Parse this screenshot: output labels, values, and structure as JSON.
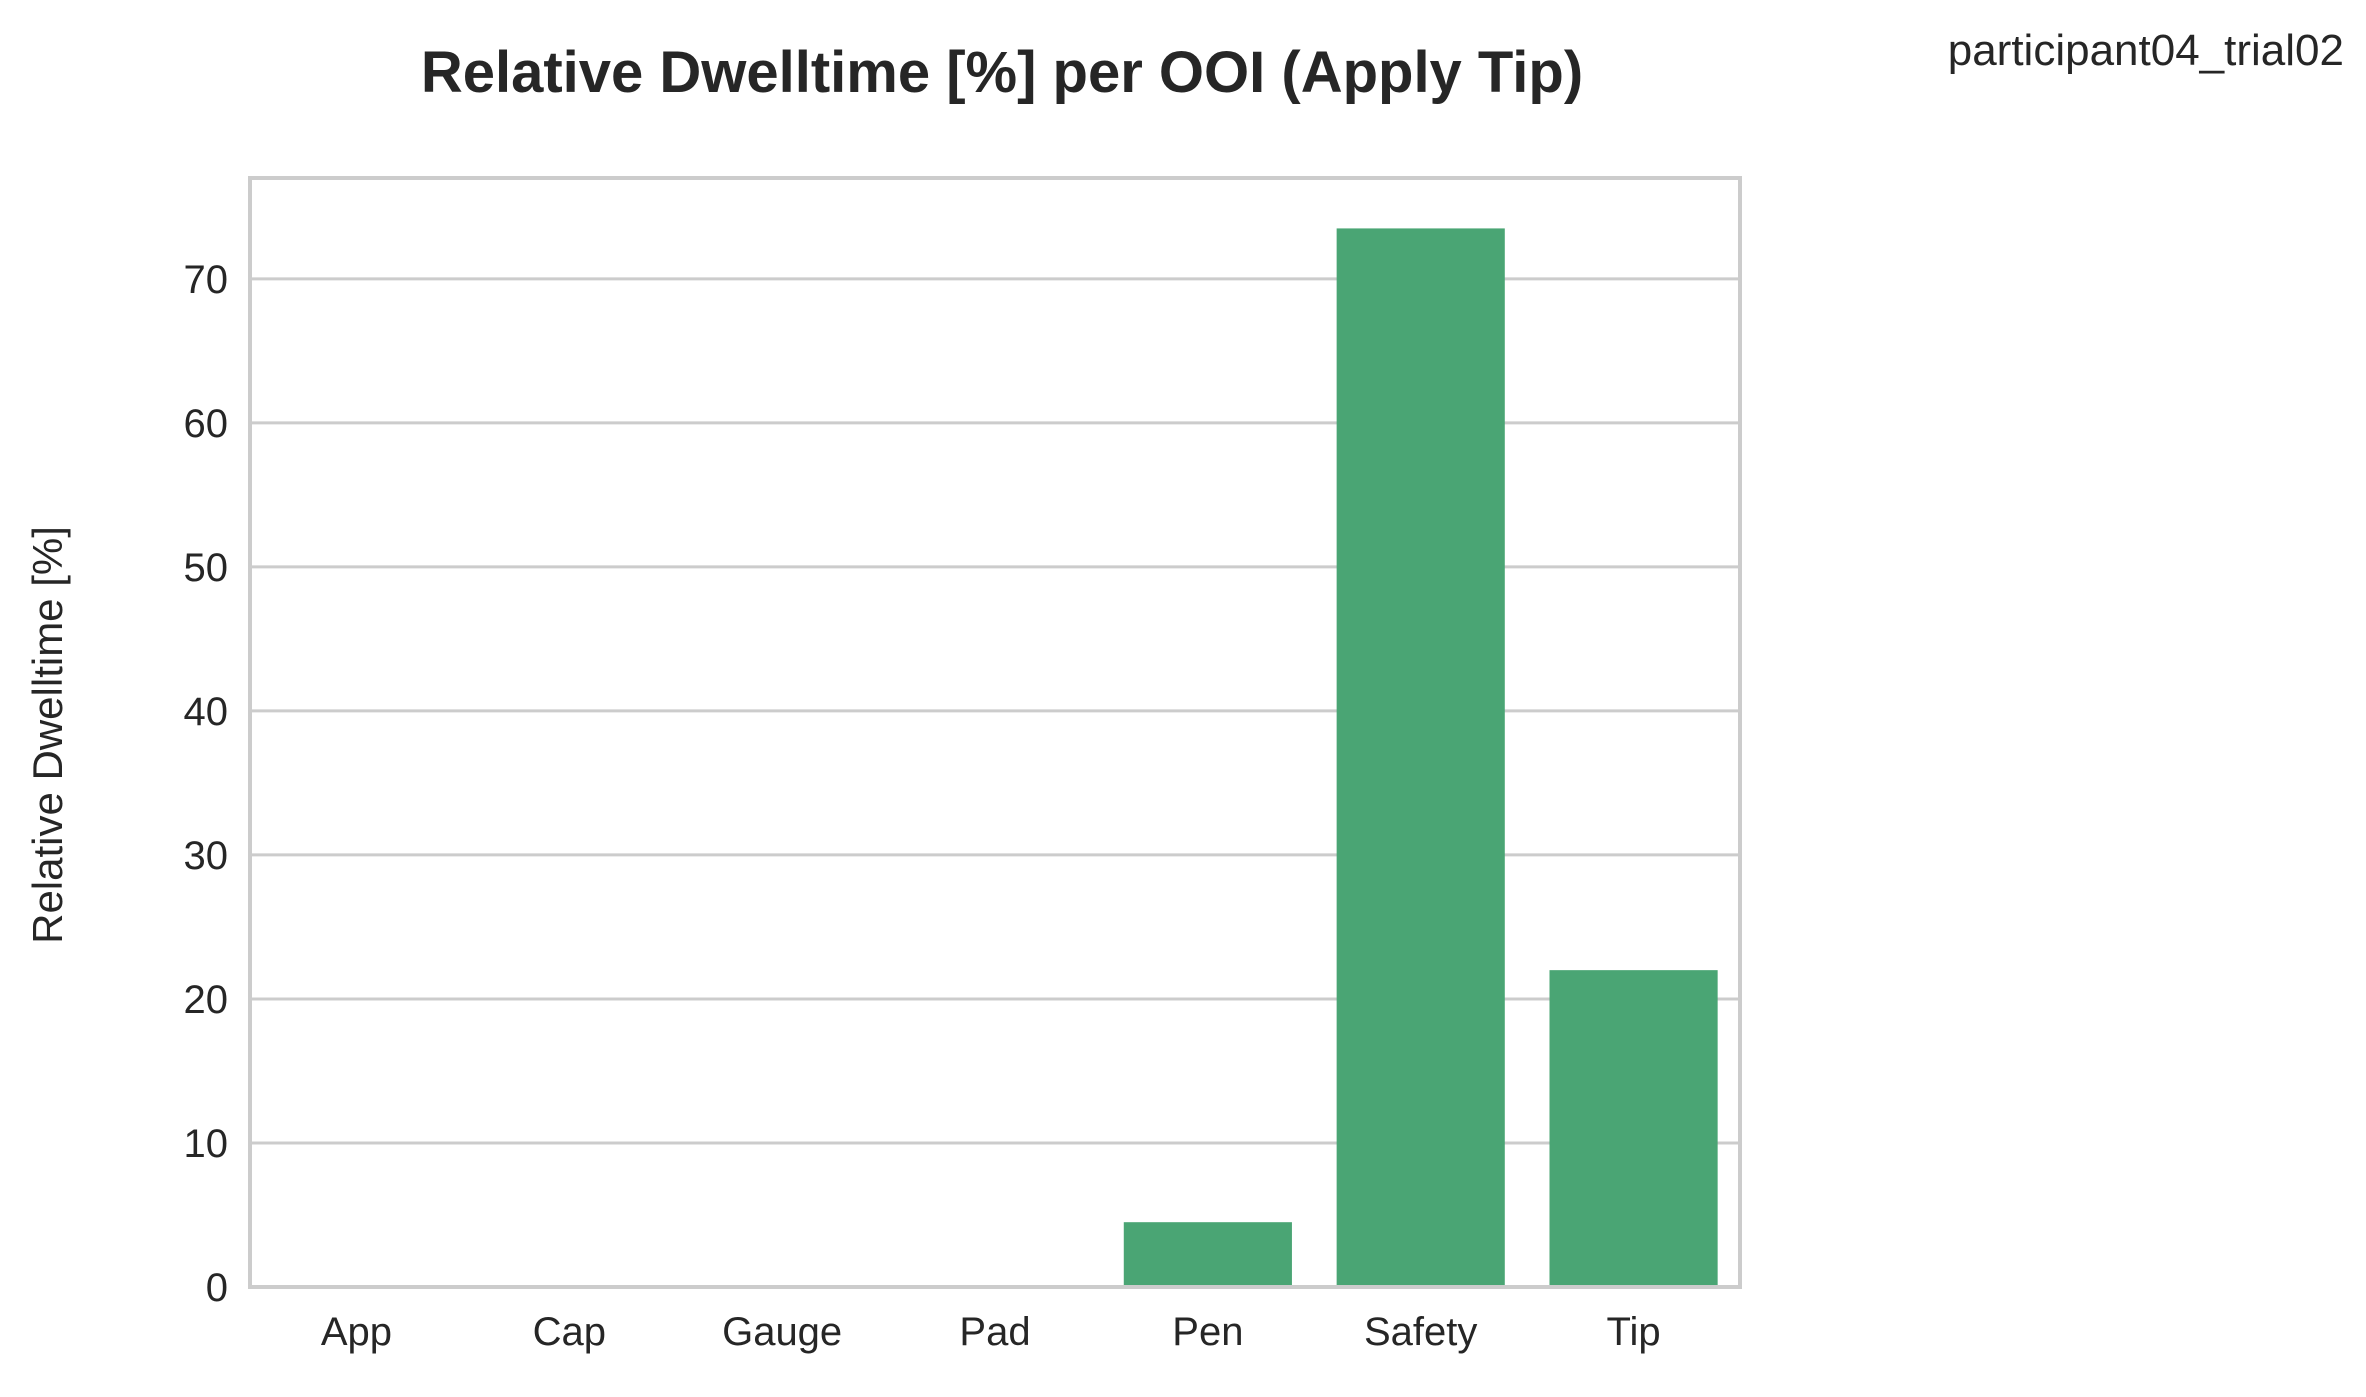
{
  "figure": {
    "caption": "participant04_trial02"
  },
  "chart_data": {
    "type": "bar",
    "title": "Relative Dwelltime [%] per OOI (Apply Tip)",
    "xlabel": "",
    "ylabel": "Relative Dwelltime [%]",
    "categories": [
      "App",
      "Cap",
      "Gauge",
      "Pad",
      "Pen",
      "Safety",
      "Tip"
    ],
    "values": [
      0,
      0,
      0,
      0,
      4.5,
      73.5,
      22.0
    ],
    "ylim": [
      0,
      77
    ],
    "yticks": [
      0,
      10,
      20,
      30,
      40,
      50,
      60,
      70
    ],
    "grid": "horizontal",
    "bar_color": "#4aa574"
  }
}
